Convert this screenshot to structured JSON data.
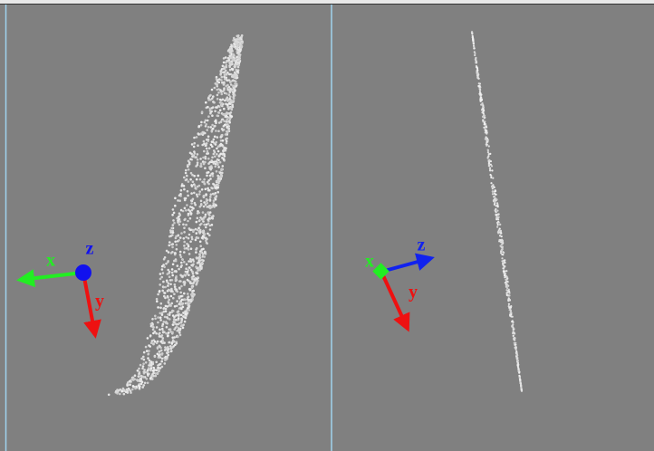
{
  "panels": [
    {
      "axes": {
        "x": "x",
        "y": "y",
        "z": "z"
      }
    },
    {
      "axes": {
        "x": "x",
        "y": "y",
        "z": "z"
      }
    }
  ]
}
